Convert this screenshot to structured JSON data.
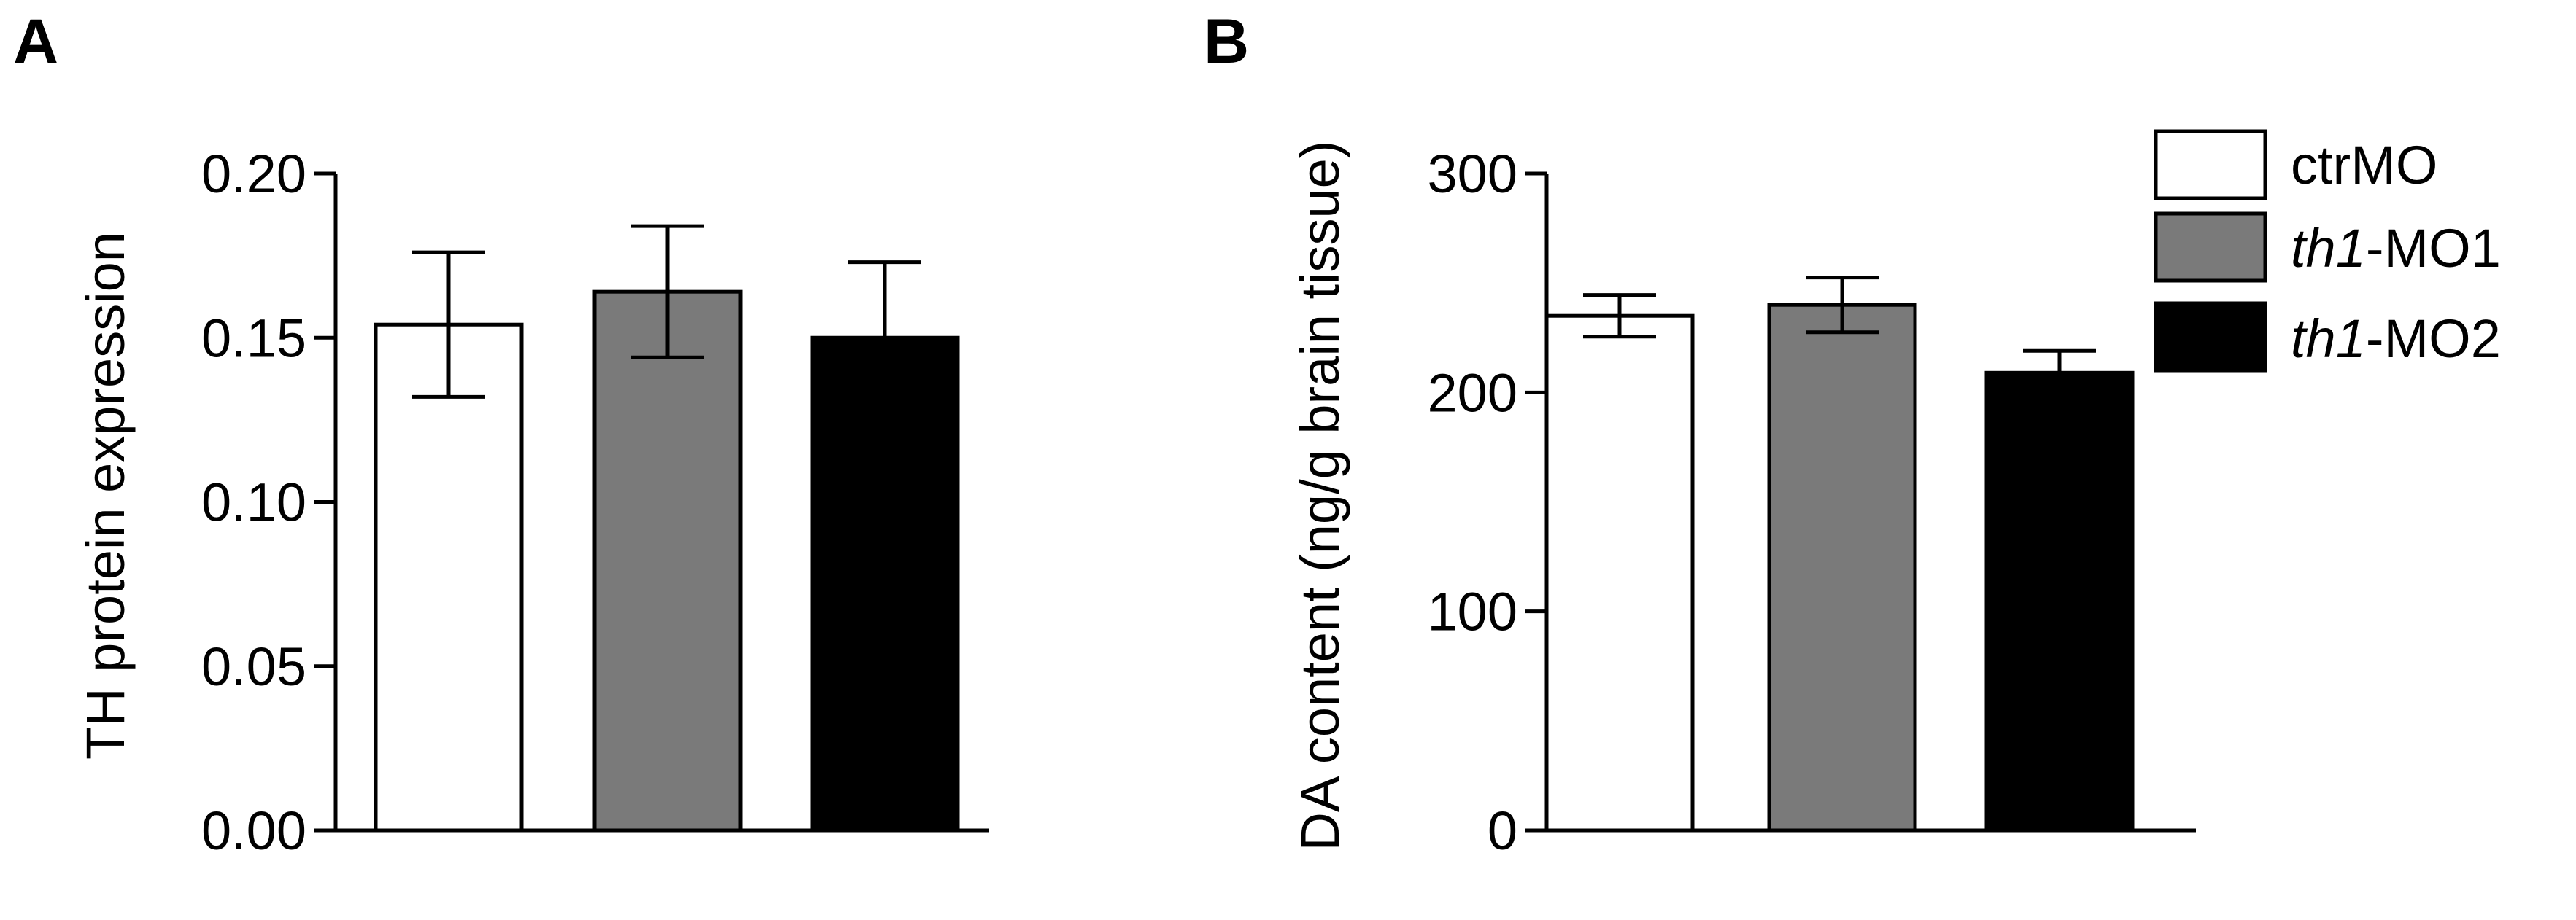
{
  "panels": {
    "a": {
      "label": "A"
    },
    "b": {
      "label": "B"
    }
  },
  "legend": [
    {
      "prefix": "",
      "suffix": "ctrMO",
      "color": "#ffffff"
    },
    {
      "prefix": "th1",
      "suffix": "-MO1",
      "color": "#7a7a7a"
    },
    {
      "prefix": "th1",
      "suffix": "-MO2",
      "color": "#000000"
    }
  ],
  "chart_data": [
    {
      "type": "bar",
      "panel": "A",
      "title": "",
      "xlabel": "",
      "ylabel": "TH protein expression",
      "ylim": [
        0,
        0.2
      ],
      "yticks": [
        "0.00",
        "0.05",
        "0.10",
        "0.15",
        "0.20"
      ],
      "categories": [
        "ctrMO",
        "th1-MO1",
        "th1-MO2"
      ],
      "values": [
        0.154,
        0.164,
        0.15
      ],
      "errors": [
        0.022,
        0.02,
        0.023
      ],
      "error_direction": [
        "both",
        "both",
        "up"
      ],
      "colors": [
        "#ffffff",
        "#7a7a7a",
        "#000000"
      ],
      "grid": false
    },
    {
      "type": "bar",
      "panel": "B",
      "title": "",
      "xlabel": "",
      "ylabel": "DA content (ng/g brain tissue)",
      "ylim": [
        0,
        300
      ],
      "yticks": [
        "0",
        "100",
        "200",
        "300"
      ],
      "categories": [
        "ctrMO",
        "th1-MO1",
        "th1-MO2"
      ],
      "values": [
        235,
        240,
        209
      ],
      "errors": [
        9.5,
        12.5,
        10
      ],
      "error_direction": [
        "both",
        "both",
        "up"
      ],
      "colors": [
        "#ffffff",
        "#7a7a7a",
        "#000000"
      ],
      "grid": false,
      "legend_position": "top-right"
    }
  ]
}
